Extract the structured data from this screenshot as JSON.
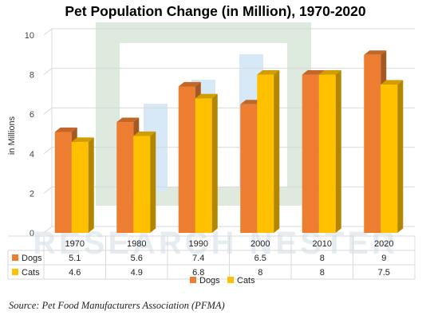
{
  "chart_data": {
    "type": "bar",
    "title": "Pet Population Change (in Million), 1970-2020",
    "ylabel": "in Millions",
    "ylim": [
      0,
      10
    ],
    "yticks": [
      0,
      2,
      4,
      6,
      8,
      10
    ],
    "grid": true,
    "categories": [
      "1970",
      "1980",
      "1990",
      "2000",
      "2010",
      "2020"
    ],
    "series": [
      {
        "name": "Dogs",
        "color": "#ED7D31",
        "values": [
          5.1,
          5.6,
          7.4,
          6.5,
          8,
          9
        ],
        "labels": [
          "5.1",
          "5.6",
          "7.4",
          "6.5",
          "8",
          "9"
        ]
      },
      {
        "name": "Cats",
        "color": "#FFC000",
        "values": [
          4.6,
          4.9,
          6.8,
          8,
          8,
          7.5
        ],
        "labels": [
          "4.6",
          "4.9",
          "6.8",
          "8",
          "8",
          "7.5"
        ]
      }
    ],
    "legend_position": "bottom",
    "data_table": true,
    "style": "3d-columns"
  },
  "source": "Source: Pet Food Manufacturers Association (PFMA)",
  "watermark": "RESEARCH NESTER"
}
